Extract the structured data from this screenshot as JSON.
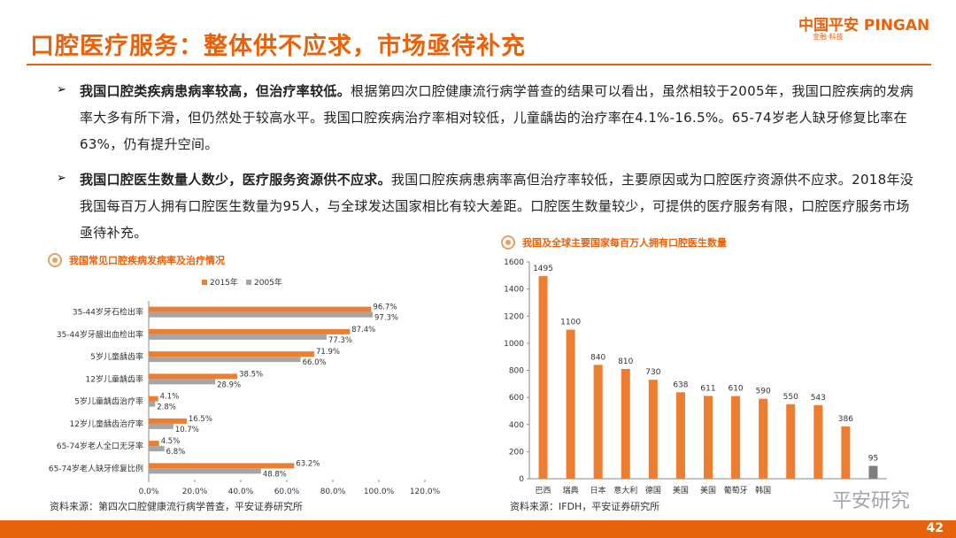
{
  "header": {
    "title": "口腔医疗服务：整体供不应求，市场亟待补充",
    "logo": "中国平安 PINGAN",
    "logo_sub": "金融·科技"
  },
  "bullets": [
    {
      "bold": "我国口腔类疾病患病率较高，但治疗率较低。",
      "text": "根据第四次口腔健康流行病学普查的结果可以看出，虽然相较于2005年，我国口腔疾病的发病率大多有所下滑，但仍然处于较高水平。我国口腔疾病治疗率相对较低，儿童龋齿的治疗率在4.1%-16.5%。65-74岁老人缺牙修复比率在63%，仍有提升空间。"
    },
    {
      "bold": "我国口腔医生数量人数少，医疗服务资源供不应求。",
      "text": "我国口腔疾病患病率高但治疗率较低，主要原因或为口腔医疗资源供不应求。2018年没我国每百万人拥有口腔医生数量为95人，与全球发达国家相比有较大差距。口腔医生数量较少，可提供的医疗服务有限，口腔医疗服务市场亟待补充。"
    }
  ],
  "chart_data": [
    {
      "type": "bar",
      "orientation": "horizontal",
      "title": "我国常见口腔疾病发病率及治疗情况",
      "categories": [
        "35-44岁牙石检出率",
        "35-44岁牙龈出血检出率",
        "5岁儿童龋齿率",
        "12岁儿童龋齿率",
        "5岁儿童龋齿治疗率",
        "12岁儿童龋齿治疗率",
        "65-74岁老人全口无牙率",
        "65-74岁老人缺牙修复比例"
      ],
      "series": [
        {
          "name": "2015年",
          "color": "#ED7D31",
          "values": [
            96.7,
            87.4,
            71.9,
            38.5,
            4.1,
            16.5,
            4.5,
            63.2
          ],
          "value_labels": [
            "96.7%",
            "87.4%",
            "71.9%",
            "38.5%",
            "4.1%",
            "16.5%",
            "4.5%",
            "63.2%"
          ]
        },
        {
          "name": "2005年",
          "color": "#A5A5A5",
          "values": [
            97.3,
            77.3,
            66.0,
            28.9,
            2.8,
            10.7,
            6.8,
            48.8
          ],
          "value_labels": [
            "97.3%",
            "77.3%",
            "66.0%",
            "28.9%",
            "2.8%",
            "10.7%",
            "6.8%",
            "48.8%"
          ]
        }
      ],
      "xlim": [
        0,
        120
      ],
      "xticks": [
        {
          "value": 0,
          "label": "0.0%"
        },
        {
          "value": 20,
          "label": "20.0%"
        },
        {
          "value": 40,
          "label": "40.0%"
        },
        {
          "value": 60,
          "label": "60.0%"
        },
        {
          "value": 80,
          "label": "80.0%"
        },
        {
          "value": 100,
          "label": "100.0%"
        },
        {
          "value": 120,
          "label": "120.0%"
        }
      ],
      "legend": "top",
      "source": "资料来源：第四次口腔健康流行病学普查，平安证券研究所"
    },
    {
      "type": "bar",
      "orientation": "vertical",
      "title": "我国及全球主要国家每百万人拥有口腔医生数量",
      "categories": [
        "巴西",
        "瑞典",
        "日本",
        "意大利",
        "德国",
        "美国",
        "美国",
        "葡萄牙",
        "韩国",
        null,
        null,
        null,
        null
      ],
      "values": [
        1495,
        1100,
        840,
        810,
        730,
        638,
        611,
        610,
        590,
        550,
        543,
        386,
        95
      ],
      "colors": [
        "#ED7D31",
        "#ED7D31",
        "#ED7D31",
        "#ED7D31",
        "#ED7D31",
        "#ED7D31",
        "#ED7D31",
        "#ED7D31",
        "#ED7D31",
        "#ED7D31",
        "#ED7D31",
        "#ED7D31",
        "#7F7F7F"
      ],
      "ylim": [
        0,
        1600
      ],
      "yticks": [
        0,
        200,
        400,
        600,
        800,
        1000,
        1200,
        1400,
        1600
      ],
      "source": "资料来源：IFDH，平安证券研究所"
    }
  ],
  "watermark": "平安研究",
  "page_number": "42"
}
